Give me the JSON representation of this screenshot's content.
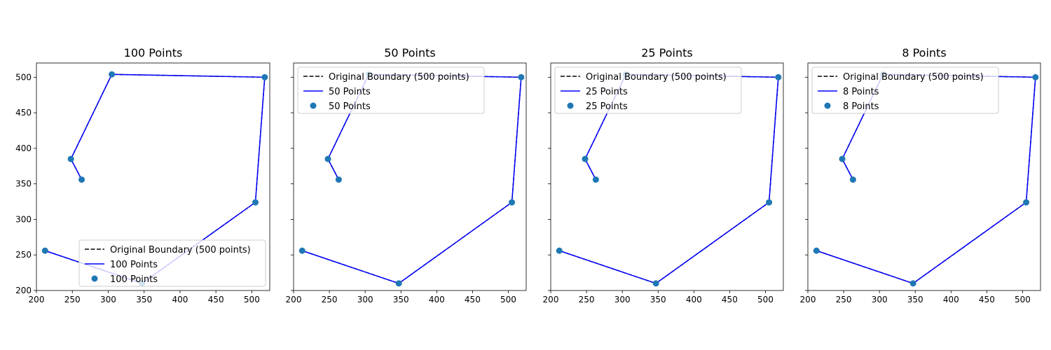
{
  "chart_data": [
    {
      "type": "line",
      "title": "100 Points",
      "xlim": [
        200,
        525
      ],
      "ylim": [
        200,
        520
      ],
      "xticks": [
        200,
        250,
        300,
        350,
        400,
        450,
        500
      ],
      "yticks": [
        200,
        250,
        300,
        350,
        400,
        450,
        500
      ],
      "show_yticklabels": true,
      "legend_position": "lower-right",
      "series": [
        {
          "name": "Original Boundary (500 points)",
          "kind": "line",
          "style": "dashed",
          "color": "#000000",
          "x": [
            263,
            248,
            305,
            518,
            505,
            347,
            212
          ],
          "y": [
            356,
            385,
            504,
            500,
            324,
            210,
            256
          ]
        },
        {
          "name": "100 Points",
          "kind": "line",
          "style": "solid",
          "color": "#0000ff",
          "x": [
            263,
            248,
            305,
            518,
            505,
            347,
            212
          ],
          "y": [
            356,
            385,
            504,
            500,
            324,
            210,
            256
          ]
        },
        {
          "name": "100 Points",
          "kind": "scatter",
          "color": "#1f77b4",
          "x": [
            263,
            248,
            305,
            518,
            505,
            347,
            212
          ],
          "y": [
            356,
            385,
            504,
            500,
            324,
            210,
            256
          ]
        }
      ]
    },
    {
      "type": "line",
      "title": "50 Points",
      "xlim": [
        200,
        525
      ],
      "ylim": [
        200,
        520
      ],
      "xticks": [
        200,
        250,
        300,
        350,
        400,
        450,
        500
      ],
      "yticks": [
        200,
        250,
        300,
        350,
        400,
        450,
        500
      ],
      "show_yticklabels": false,
      "legend_position": "upper-left",
      "series": [
        {
          "name": "Original Boundary (500 points)",
          "kind": "line",
          "style": "dashed",
          "color": "#000000",
          "x": [
            263,
            248,
            305,
            518,
            505,
            347,
            212
          ],
          "y": [
            356,
            385,
            504,
            500,
            324,
            210,
            256
          ]
        },
        {
          "name": "50 Points",
          "kind": "line",
          "style": "solid",
          "color": "#0000ff",
          "x": [
            263,
            248,
            305,
            518,
            505,
            347,
            212
          ],
          "y": [
            356,
            385,
            504,
            500,
            324,
            210,
            256
          ]
        },
        {
          "name": "50 Points",
          "kind": "scatter",
          "color": "#1f77b4",
          "x": [
            263,
            248,
            305,
            518,
            505,
            347,
            212
          ],
          "y": [
            356,
            385,
            504,
            500,
            324,
            210,
            256
          ]
        }
      ]
    },
    {
      "type": "line",
      "title": "25 Points",
      "xlim": [
        200,
        525
      ],
      "ylim": [
        200,
        520
      ],
      "xticks": [
        200,
        250,
        300,
        350,
        400,
        450,
        500
      ],
      "yticks": [
        200,
        250,
        300,
        350,
        400,
        450,
        500
      ],
      "show_yticklabels": false,
      "legend_position": "upper-left",
      "series": [
        {
          "name": "Original Boundary (500 points)",
          "kind": "line",
          "style": "dashed",
          "color": "#000000",
          "x": [
            263,
            248,
            305,
            518,
            505,
            347,
            212
          ],
          "y": [
            356,
            385,
            504,
            500,
            324,
            210,
            256
          ]
        },
        {
          "name": "25 Points",
          "kind": "line",
          "style": "solid",
          "color": "#0000ff",
          "x": [
            263,
            248,
            305,
            518,
            505,
            347,
            212
          ],
          "y": [
            356,
            385,
            504,
            500,
            324,
            210,
            256
          ]
        },
        {
          "name": "25 Points",
          "kind": "scatter",
          "color": "#1f77b4",
          "x": [
            263,
            248,
            305,
            518,
            505,
            347,
            212
          ],
          "y": [
            356,
            385,
            504,
            500,
            324,
            210,
            256
          ]
        }
      ]
    },
    {
      "type": "line",
      "title": "8 Points",
      "xlim": [
        200,
        525
      ],
      "ylim": [
        200,
        520
      ],
      "xticks": [
        200,
        250,
        300,
        350,
        400,
        450,
        500
      ],
      "yticks": [
        200,
        250,
        300,
        350,
        400,
        450,
        500
      ],
      "show_yticklabels": false,
      "legend_position": "upper-left",
      "series": [
        {
          "name": "Original Boundary (500 points)",
          "kind": "line",
          "style": "dashed",
          "color": "#000000",
          "x": [
            263,
            248,
            305,
            518,
            505,
            347,
            212
          ],
          "y": [
            356,
            385,
            504,
            500,
            324,
            210,
            256
          ]
        },
        {
          "name": "8 Points",
          "kind": "line",
          "style": "solid",
          "color": "#0000ff",
          "x": [
            263,
            248,
            305,
            518,
            505,
            347,
            212
          ],
          "y": [
            356,
            385,
            504,
            500,
            324,
            210,
            256
          ]
        },
        {
          "name": "8 Points",
          "kind": "scatter",
          "color": "#1f77b4",
          "x": [
            263,
            248,
            305,
            518,
            505,
            347,
            212
          ],
          "y": [
            356,
            385,
            504,
            500,
            324,
            210,
            256
          ]
        }
      ]
    }
  ]
}
